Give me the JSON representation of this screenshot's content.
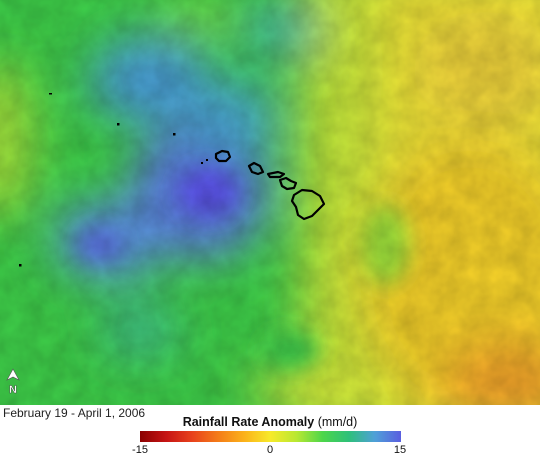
{
  "date_range": "February 19 - April 1, 2006",
  "legend": {
    "title_bold": "Rainfall Rate Anomaly",
    "title_units": "(mm/d)",
    "ticks": [
      "-15",
      "0",
      "15"
    ],
    "colors": [
      "#8b0000",
      "#e8421c",
      "#fbb21a",
      "#f7ea2a",
      "#4cd64a",
      "#2ec07a",
      "#5a5ee0"
    ]
  },
  "north_arrow_label": "N",
  "icons": [
    "north-arrow-icon"
  ]
}
